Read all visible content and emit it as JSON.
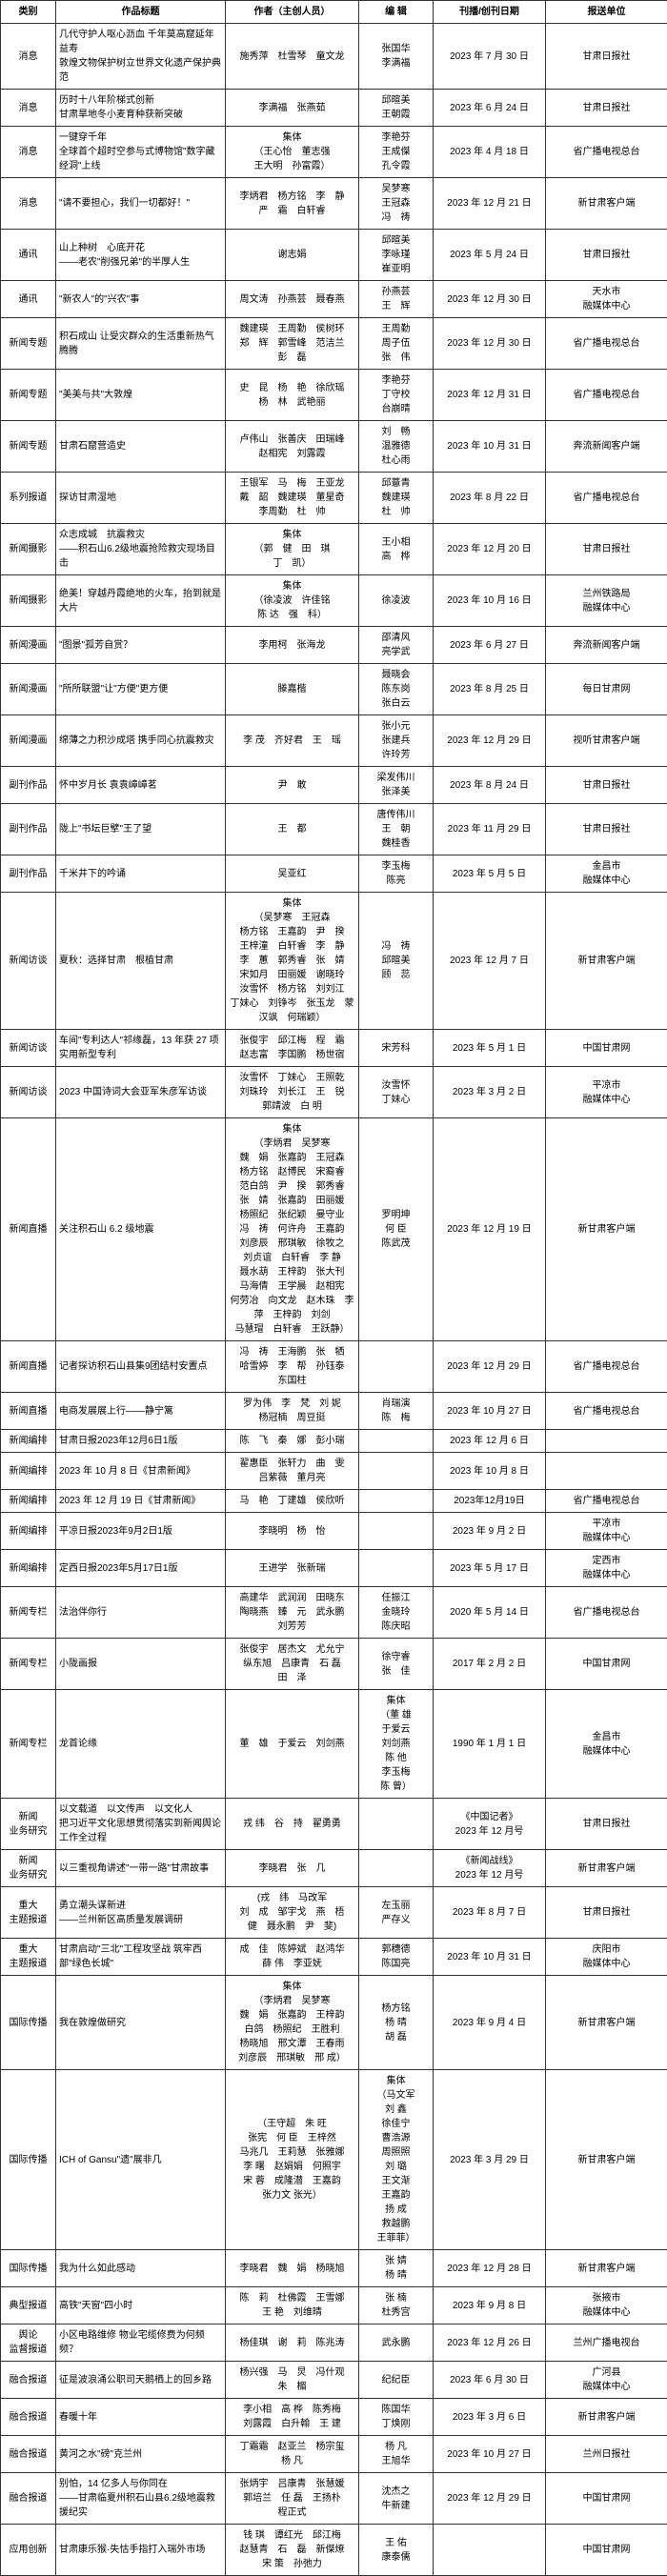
{
  "headers": [
    "类别",
    "作品标题",
    "作者（主创人员）",
    "编 辑",
    "刊播/创刊日期",
    "报送单位"
  ],
  "rows": [
    {
      "cat": "消息",
      "title": "几代守护人呕心沥血 千年莫高窟延年益寿\n敦煌文物保护树立世界文化遗产保护典范",
      "author": "施秀萍　杜雪琴　童文龙",
      "editor": "张国华\n李满福",
      "date": "2023 年 7 月 30 日",
      "org": "甘肃日报社"
    },
    {
      "cat": "消息",
      "title": "历时十八年阶梯式创新\n甘肃旱地冬小麦育种获新突破",
      "author": "李满福　张燕茹",
      "editor": "邱暄美\n王朝霞",
      "date": "2023 年 6 月 24 日",
      "org": "甘肃日报社"
    },
    {
      "cat": "消息",
      "title": "一键穿千年\n全球首个超时空参与式博物馆\"数字藏经洞\"上线",
      "author": "集体\n（王心怡　董志强\n王大明　孙富霞）",
      "editor": "李艳芬\n王成傑\n孔令霞",
      "date": "2023 年 4 月 18 日",
      "org": "省广播电视总台"
    },
    {
      "cat": "消息",
      "title": "\"请不要担心，我们一切都好！\"",
      "author": "李炳君　杨方铭　李　静\n严　霜　白轩睿",
      "editor": "吴梦寒\n王冠森\n冯　祷",
      "date": "2023 年 12 月 21 日",
      "org": "新甘肃客户端"
    },
    {
      "cat": "通讯",
      "title": "山上种树　心底开花\n——老农\"削强兄弟\"的半厚人生",
      "author": "谢志娟",
      "editor": "邱暄美\n李咏瑾\n崔亚明",
      "date": "2023 年 5 月 24 日",
      "org": "甘肃日报社"
    },
    {
      "cat": "通讯",
      "title": "\"新农人\"的\"兴农\"事",
      "author": "周文涛　孙燕芸　聂春燕",
      "editor": "孙燕芸\n王　辉",
      "date": "2023 年 12 月 30 日",
      "org": "天水市\n融媒体中心"
    },
    {
      "cat": "新闻专题",
      "title": "积石成山 让受灾群众的生活重新热气腾腾",
      "author": "魏建瑛　王周勤　侯树环\n郑　辉　郭雪峰　范洁兰\n彭　磊",
      "editor": "王周勤\n周子伍\n张　伟",
      "date": "2023 年 12 月 30 日",
      "org": "省广播电视总台"
    },
    {
      "cat": "新闻专题",
      "title": "\"美美与共\"大敦煌",
      "author": "史　昆　杨　艳　徐欣瑶\n杨　林　武艳丽",
      "editor": "李艳芬\n丁守校\n台崩晴",
      "date": "2023 年 12 月 31 日",
      "org": "省广播电视总台"
    },
    {
      "cat": "新闻专题",
      "title": "甘肃石窟营造史",
      "author": "卢伟山　张善庆　田瑞峰\n赵相宪　刘露霞",
      "editor": "刘　畅\n温雅德\n杜心雨",
      "date": "2023 年 10 月 31 日",
      "org": "奔流新闻客户端"
    },
    {
      "cat": "系列报道",
      "title": "探访甘肃湿地",
      "author": "王银军　马　梅　王亚龙\n戴　韶　魏建瑛　董星奇\n李周勤　杜　帅",
      "editor": "邱薏青\n魏建瑛\n杜　帅",
      "date": "2023 年 8 月 22 日",
      "org": "省广播电视总台"
    },
    {
      "cat": "新闻摄影",
      "title": "众志成城　抗震救灾\n——积石山6.2级地震抢险救灾现场目击",
      "author": "集体\n（郭　健　田　琪\n丁　凯）",
      "editor": "王小相\n高　桦",
      "date": "2023 年 12 月 20 日",
      "org": "甘肃日报社"
    },
    {
      "cat": "新闻摄影",
      "title": "绝美！穿越丹霞绝地的火车，抬到就是大片",
      "author": "集体\n（徐凌波　许佳铭\n陈 达　强　科）",
      "editor": "徐凌波",
      "date": "2023 年 10 月 16 日",
      "org": "兰州铁路局\n融媒体中心"
    },
    {
      "cat": "新闻漫画",
      "title": "\"图景\"孤芳自赏？",
      "author": "李用柯　张海龙",
      "editor": "邵清风\n亮学武",
      "date": "2023 年 6 月 27 日",
      "org": "奔流新闻客户端"
    },
    {
      "cat": "新闻漫画",
      "title": "\"所所联盟\"让\"方便\"更方便",
      "author": "滕嘉楷",
      "editor": "聂晓会\n陈东岗\n张白云",
      "date": "2023 年 8 月 25 日",
      "org": "每日甘肃网"
    },
    {
      "cat": "新闻漫画",
      "title": "绵薄之力积沙成塔 携手同心抗震救灾",
      "author": "李 茂　齐好君　王　瑶",
      "editor": "张小元\n张建兵\n许玲芳",
      "date": "2023 年 12 月 29 日",
      "org": "视听甘肃客户端"
    },
    {
      "cat": "副刊作品",
      "title": "怀中岁月长 袁袁嶂嶂茗",
      "author": "尹　敢",
      "editor": "梁发伟川\n张泽美",
      "date": "2023 年 8 月 24 日",
      "org": "甘肃日报社"
    },
    {
      "cat": "副刊作品",
      "title": "陇上\"书坛巨擘\"王了望",
      "author": "王　都",
      "editor": "唐传伟川\n王　朝\n魏桂香",
      "date": "2023 年 11 月 29 日",
      "org": "甘肃日报社"
    },
    {
      "cat": "副刊作品",
      "title": "千米井下的吟诵",
      "author": "吴亚红",
      "editor": "李玉梅\n陈亮",
      "date": "2023 年 5 月 5 日",
      "org": "金昌市\n融媒体中心"
    },
    {
      "cat": "新闻访谈",
      "title": "夏秋：选择甘肃　根植甘肃",
      "author": "集体\n（吴梦寒　王冠森\n杨方铭　王嘉韵　尹　揆\n王梓潼　白轩睿　李　静\n李　蕙　郭秀睿　张　婧\n宋如月　田丽媛　谢晓玲\n汝雪怀　杨方铭　刘刘江\n丁妹心　刘铮岑　张玉龙　蒙汉飒　何瑞颖）",
      "editor": "冯　祷\n邱暄美\n顾　蕊",
      "date": "2023 年 12 月 7 日",
      "org": "新甘肃客户端"
    },
    {
      "cat": "新闻访谈",
      "title": "车间\"专利达人\"祁缘磊，13 年获 27 项实用新型专利",
      "author": "张俊宇　邱江梅　程　霜\n赵志富　李国鹏　杨世宿",
      "editor": "宋芳科",
      "date": "2023 年 5 月 1 日",
      "org": "中国甘肃网"
    },
    {
      "cat": "新闻访谈",
      "title": "2023 中国诗词大会亚军朱彦军访谈",
      "author": "汝雪怀　丁妹心　王照乾\n刘珠玲　刘长江　王　锐\n郭靖波　白 明",
      "editor": "汝雪怀\n丁妹心",
      "date": "2023 年 3 月 2 日",
      "org": "平凉市\n融媒体中心"
    },
    {
      "cat": "新闻直播",
      "title": "关注积石山 6.2 级地震",
      "author": "集体\n（李炳君　吴梦寒\n魏　娟　张嘉韵　王冠森\n杨方铭　赵博民　宋裔睿\n范白鸽　尹　揆　郭秀睿\n张　婧　张嘉韵　田丽媛\n杨照纪　张纪颖　曼守业\n冯　祷　何许舟　王嘉韵\n刘彦辰　邢琪敏　徐牧之\n刘贞谊　白轩睿　李 静\n聂水葫　王梓韵　张大刊\n马海倩　王学晨　赵相宪\n何劳冶　向文龙　赵木珠　李 萍　王梓韵　刘剑\n马慧瑁　白轩睿　王跃静）",
      "editor": "罗明坤\n何 臣\n陈武茂",
      "date": "2023 年 12 月 19 日",
      "org": "新甘肃客户端"
    },
    {
      "cat": "新闻直播",
      "title": "记者探访积石山县集9团结村安置点",
      "author": "冯　祷　王海鹏　张　牺\n哈雪婷　李　帮　孙钰泰\n东国柱",
      "editor": "",
      "date": "2023 年 12 月 29 日",
      "org": "省广播电视总台"
    },
    {
      "cat": "新闻直播",
      "title": "电商发展展上行——静宁篱",
      "author": "罗为伟　李　梵　刘 妮\n杨冠楠　周豆挺",
      "editor": "肖瑞演\n陈　梅",
      "date": "2023 年 10 月 27 日",
      "org": "省广播电视总台"
    },
    {
      "cat": "新闻编排",
      "title": "甘肃日报2023年12月6日1版",
      "author": "陈　飞　秦　娜　彭小瑞",
      "editor": "",
      "date": "2023 年 12 月 6 日",
      "org": ""
    },
    {
      "cat": "新闻编排",
      "title": "2023 年 10 月 8 日《甘肃新闻》",
      "author": "翟惠臣　张轩力　曲　雯\n吕紫薇　董月亮",
      "editor": "",
      "date": "2023 年 10 月 8 日",
      "org": ""
    },
    {
      "cat": "新闻编排",
      "title": "2023 年 12 月 19 日《甘肃新闻》",
      "author": "马　艳　丁建雄　侯欣听",
      "editor": "",
      "date": "2023年12月19日",
      "org": "省广播电视总台"
    },
    {
      "cat": "新闻编排",
      "title": "平凉日报2023年9月2日1版",
      "author": "李晓明　杨　怡",
      "editor": "",
      "date": "2023 年 9 月 2 日",
      "org": "平凉市\n融媒体中心"
    },
    {
      "cat": "新闻编排",
      "title": "定西日报2023年5月17日1版",
      "author": "王进学　张新瑞",
      "editor": "",
      "date": "2023 年 5 月 17 日",
      "org": "定西市\n融媒体中心"
    },
    {
      "cat": "新闻专栏",
      "title": "法治伴你行",
      "author": "高建华　武润润　田晓东\n陶晓燕　臻　元　武永鹏\n刘芳芳",
      "editor": "任振江\n金晓玲\n陈庆昭",
      "date": "2020 年 5 月 14 日",
      "org": "省广播电视总台"
    },
    {
      "cat": "新闻专栏",
      "title": "小陇画报",
      "author": "张俊宇　居杰文　尤允宁\n纵东旭　吕康青　石 磊\n田　泽",
      "editor": "徐守睿\n张　佳",
      "date": "2017 年 2 月 2 日",
      "org": "中国甘肃网"
    },
    {
      "cat": "新闻专栏",
      "title": "龙首论缘",
      "author": "董　雄　于爱云　刘剑燕",
      "editor": "集体\n（董 雄\n于爱云\n刘剑燕\n陈  他\n李玉梅\n陈  曾）",
      "date": "1990 年 1 月 1 日",
      "org": "金昌市\n融媒体中心"
    },
    {
      "cat": "新闻\n业务研究",
      "title": "以文载道　以文传声　以文化人\n把习近平文化思想贯彻落实到新闻舆论工作全过程",
      "author": "戎 纬　谷　持　翟勇勇",
      "editor": "",
      "date": "《中国记者》\n2023 年 12 月号",
      "org": "甘肃日报社"
    },
    {
      "cat": "新闻\n业务研究",
      "title": "以三重视角讲述\"一带一路\"甘肃故事",
      "author": "李晓君　张　几",
      "editor": "",
      "date": "《新闻战线》\n2023 年 12 月号",
      "org": "新甘肃客户端"
    },
    {
      "cat": "重大\n主题报道",
      "title": "勇立潮头谋新进\n——兰州新区高质量发展调研",
      "author": "(戎　纬　马改军\n刘　成　邹宇戈　燕　梧\n健　聂永鹏　尹　斐)",
      "editor": "左玉丽\n严存义",
      "date": "2023 年 8 月 7 日",
      "org": "甘肃日报社"
    },
    {
      "cat": "重大\n主题报道",
      "title": "甘肃启动\"三北\"工程攻坚战 筑牢西部\"绿色长城\"",
      "author": "成　佳　陈婷斌　赵鸿华\n薛 伟　李亚妩",
      "editor": "郭穗德\n陈国亮",
      "date": "2023 年 10 月 31 日",
      "org": "庆阳市\n融媒体中心"
    },
    {
      "cat": "国际传播",
      "title": "我在敦煌做研究",
      "author": "集体\n（李炳君　吴梦寒\n魏　娟　张嘉韵　王梓韵\n白鸽　杨照纪　王胜利\n杨晓旭　邢文潭　王春雨\n刘彦辰　邢琪敏　邢 成）",
      "editor": "杨方铭\n杨 晴\n胡 磊",
      "date": "2023 年 9 月 4 日",
      "org": "新甘肃客户端"
    },
    {
      "cat": "国际传播",
      "title": "ICH of Gansu\"遗\"展非几",
      "author": "（王守超　朱 旺\n张宪　何 臣　王梓然\n马兆几　王莉慧　张雅娜\n李 曙　赵娟娟　何照宇\n宋 蓉　成隆潜　王嘉韵\n张力文 张光）",
      "editor": "集体\n（马文军\n刘 鑫\n徐佳宁\n曹浩源\n周照照\n刘 璐\n王文渐\n王嘉韵\n扬 成\n救越鹏\n王菲菲）",
      "date": "2023 年 3 月 29 日",
      "org": "新甘肃客户端"
    },
    {
      "cat": "国际传播",
      "title": "我为什么如此感动",
      "author": "李晓君　魏　娟　杨晓旭",
      "editor": "张 婧\n杨 晴",
      "date": "2023 年 12 月 28 日",
      "org": "新甘肃客户端"
    },
    {
      "cat": "典型报道",
      "title": "高铁\"天窗\"四小时",
      "author": "陈　莉　杜佛霞　王雪娜\n王 艳　刘维晴",
      "editor": "张 楠\n杜秀宫",
      "date": "2023 年 9 月 8 日",
      "org": "张掖市\n融媒体中心"
    },
    {
      "cat": "舆论\n监督报道",
      "title": "小区电路维修 物业宅缆修费为何频频？",
      "author": "杨佳琪　谢　莉　陈兆涛",
      "editor": "武永鹏",
      "date": "2023 年 12 月 26 日",
      "org": "兰州广播电视台"
    },
    {
      "cat": "融合报道",
      "title": "征是波浪涌公职司天鹅栖上的回乡路",
      "author": "杨兴强　马　炅　冯什观\n朱　楣",
      "editor": "纪纪臣",
      "date": "2023 年 6 月 30 日",
      "org": "广河县\n融媒体中心"
    },
    {
      "cat": "融合报道",
      "title": "春暖十年",
      "author": "李小相　高 桦　陈秀梅\n刘露霞　白升翰　王 建",
      "editor": "陈国华\n丁焕刚",
      "date": "2023 年 3 月 6 日",
      "org": "新甘肃客户端"
    },
    {
      "cat": "融合报道",
      "title": "黄河之水\"磅\"克兰州",
      "author": "丁霜霜　赵亚兰　杨宗玺\n杨 凡",
      "editor": "杨 凡\n王旭华",
      "date": "2023 年 10 月 27 日",
      "org": "兰州日报社"
    },
    {
      "cat": "融合报道",
      "title": "别怕，14 亿多人与你同在\n——甘肃临夏州积石山县6.2级地震救援纪实",
      "author": "张炳宇　吕康青　张慧媛\n郭培兰　任 磊　王扬朴\n程正式",
      "editor": "沈杰之\n牛新建",
      "date": "2023 年 12 月 29 日",
      "org": "中国甘肃网"
    },
    {
      "cat": "应用创新",
      "title": "甘肃康乐猴·失怙手指打入瑞外市场",
      "author": "钱 琪　谭红光　邱江梅\n赵慧青　石　磊　新傑燎\n宋 策　孙弛力",
      "editor": "王 佑\n康泰儒",
      "date": "",
      "org": "中国甘肃网"
    }
  ]
}
